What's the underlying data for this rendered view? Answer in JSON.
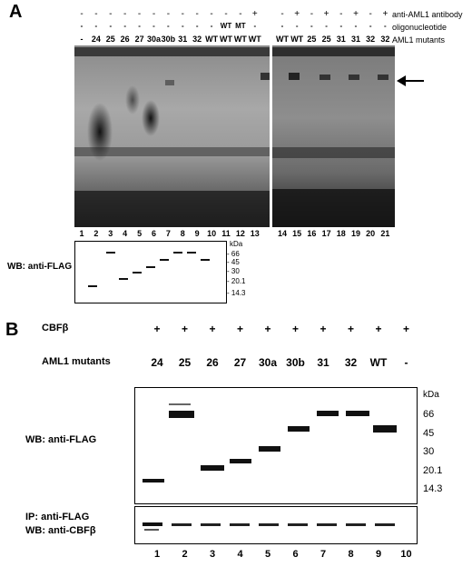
{
  "panelA": {
    "letter": "A",
    "row_labels": {
      "antibody": "anti-AML1 antibody",
      "oligo": "oligonucleotide",
      "mutants": "AML1 mutants"
    },
    "antibody_marks": [
      "-",
      "-",
      "-",
      "-",
      "-",
      "-",
      "-",
      "-",
      "-",
      "-",
      "-",
      "-",
      "+",
      "-",
      "+",
      "-",
      "+",
      "-",
      "+",
      "-",
      "+"
    ],
    "oligo_marks": [
      "-",
      "-",
      "-",
      "-",
      "-",
      "-",
      "-",
      "-",
      "-",
      "-",
      "WT",
      "MT",
      "-",
      "-",
      "-",
      "-",
      "-",
      "-",
      "-",
      "-",
      "-"
    ],
    "mutants": [
      "-",
      "24",
      "25",
      "26",
      "27",
      "30a",
      "30b",
      "31",
      "32",
      "WT",
      "WT",
      "WT",
      "WT",
      "WT",
      "WT",
      "25",
      "25",
      "31",
      "31",
      "32",
      "32"
    ],
    "lanes": [
      "1",
      "2",
      "3",
      "4",
      "5",
      "6",
      "7",
      "8",
      "9",
      "10",
      "11",
      "12",
      "13",
      "14",
      "15",
      "16",
      "17",
      "18",
      "19",
      "20",
      "21"
    ],
    "wb_label": "WB: anti-FLAG",
    "kda_unit": "kDa",
    "markers": [
      "66",
      "45",
      "30",
      "20.1",
      "14.3"
    ]
  },
  "panelB": {
    "letter": "B",
    "cbf_label": "CBFβ",
    "cbf_marks": [
      "+",
      "+",
      "+",
      "+",
      "+",
      "+",
      "+",
      "+",
      "+",
      "+"
    ],
    "mutants_label": "AML1 mutants",
    "mutants": [
      "24",
      "25",
      "26",
      "27",
      "30a",
      "30b",
      "31",
      "32",
      "WT",
      "-"
    ],
    "wb_label": "WB: anti-FLAG",
    "ip_label": "IP: anti-FLAG",
    "wb2_label": "WB: anti-CBFβ",
    "kda_unit": "kDa",
    "markers": [
      "66",
      "45",
      "30",
      "20.1",
      "14.3"
    ],
    "lanes": [
      "1",
      "2",
      "3",
      "4",
      "5",
      "6",
      "7",
      "8",
      "9",
      "10"
    ]
  }
}
